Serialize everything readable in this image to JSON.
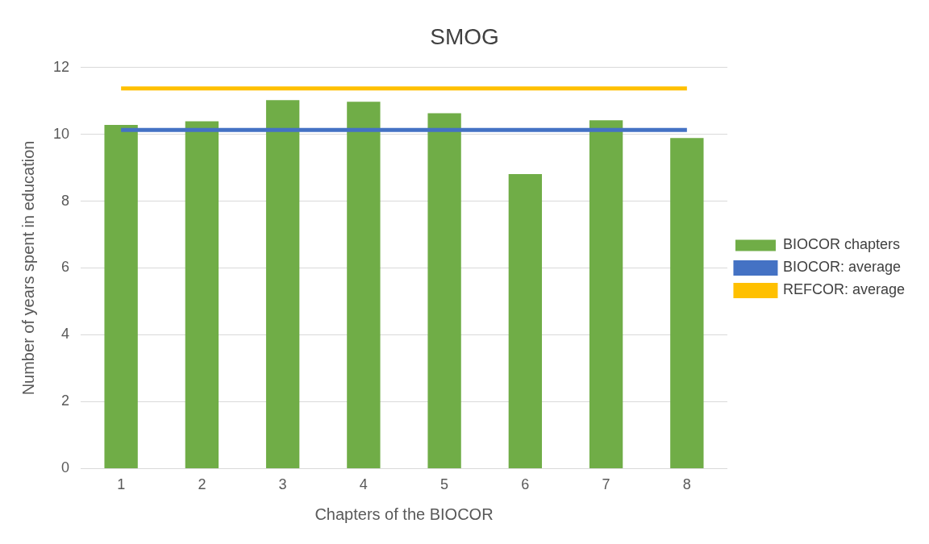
{
  "chart_data": {
    "type": "bar",
    "title": "SMOG",
    "xlabel": "Chapters of the BIOCOR",
    "ylabel": "Number of years spent in education",
    "categories": [
      "1",
      "2",
      "3",
      "4",
      "5",
      "6",
      "7",
      "8"
    ],
    "series": [
      {
        "name": "BIOCOR chapters",
        "color": "#70ad47",
        "values": [
          10.28,
          10.39,
          11.02,
          10.97,
          10.63,
          8.81,
          10.42,
          9.89
        ]
      },
      {
        "name": "BIOCOR: average",
        "type": "line",
        "color": "#4472c4",
        "values": [
          10.13,
          10.13,
          10.13,
          10.13,
          10.13,
          10.13,
          10.13,
          10.13
        ]
      },
      {
        "name": "REFCOR: average",
        "type": "line",
        "color": "#ffc000",
        "values": [
          11.37,
          11.37,
          11.37,
          11.37,
          11.37,
          11.37,
          11.37,
          11.37
        ]
      }
    ],
    "ylim": [
      0,
      12
    ],
    "yticks": [
      0,
      2,
      4,
      6,
      8,
      10,
      12
    ],
    "grid": "y",
    "legend": "right",
    "marker": "none",
    "line_style": "solid"
  }
}
